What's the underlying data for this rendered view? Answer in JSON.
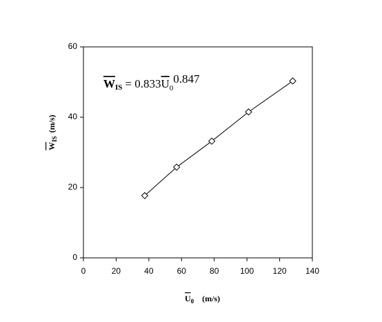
{
  "chart_data": {
    "type": "scatter",
    "x": [
      37.5,
      57,
      78.5,
      101,
      128
    ],
    "values": [
      17.7,
      25.8,
      33.2,
      41.5,
      50.3
    ],
    "color": "#000000",
    "xlim": [
      0,
      140
    ],
    "xticks": [
      0,
      20,
      40,
      60,
      80,
      100,
      120,
      140
    ],
    "ylim": [
      0,
      60
    ],
    "yticks": [
      0,
      20,
      40,
      60
    ],
    "x_label": {
      "symbol": "U",
      "sub": "0",
      "unit": "(m/s)"
    },
    "y_label": {
      "symbol": "W",
      "sub": "IS",
      "unit": "(m/s)"
    },
    "annotation": {
      "symbol": "W",
      "sub": "IS",
      "eq": "= 0.833",
      "u": "U",
      "u_sub": "0",
      "exp": "0.847"
    }
  }
}
